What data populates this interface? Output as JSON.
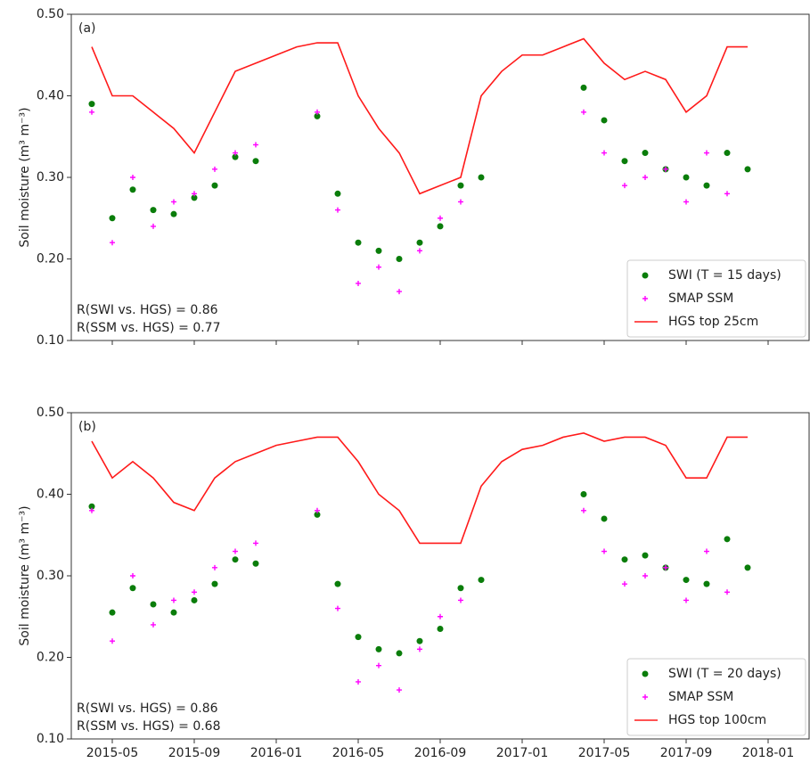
{
  "chart_data": [
    {
      "type": "line",
      "panel_label": "(a)",
      "y_label": "Soil moisture (m³ m⁻³)",
      "annotations": [
        "R(SWI vs. HGS) = 0.86",
        "R(SSM vs. HGS) = 0.77"
      ],
      "legend": "lower right",
      "x": [
        "2015-04",
        "2015-05",
        "2015-06",
        "2015-07",
        "2015-08",
        "2015-09",
        "2015-10",
        "2015-11",
        "2015-12",
        "2016-01",
        "2016-02",
        "2016-03",
        "2016-04",
        "2016-05",
        "2016-06",
        "2016-07",
        "2016-08",
        "2016-09",
        "2016-10",
        "2016-11",
        "2016-12",
        "2017-01",
        "2017-02",
        "2017-03",
        "2017-04",
        "2017-05",
        "2017-06",
        "2017-07",
        "2017-08",
        "2017-09",
        "2017-10",
        "2017-11",
        "2017-12"
      ],
      "xlim": [
        "2015-03",
        "2018-03"
      ],
      "ylim": [
        0.1,
        0.5
      ],
      "yticks": [
        {
          "value": 0.1,
          "label": "0.10"
        },
        {
          "value": 0.2,
          "label": "0.20"
        },
        {
          "value": 0.3,
          "label": "0.30"
        },
        {
          "value": 0.4,
          "label": "0.40"
        },
        {
          "value": 0.5,
          "label": "0.50"
        }
      ],
      "series": [
        {
          "name": "SWI (T = 15 days)",
          "color": "#0a7d0a",
          "mark": "dot",
          "values": [
            0.39,
            0.25,
            0.285,
            0.26,
            0.255,
            0.275,
            0.29,
            0.325,
            0.32,
            null,
            null,
            0.375,
            0.28,
            0.22,
            0.21,
            0.2,
            0.22,
            0.24,
            0.29,
            0.3,
            null,
            null,
            null,
            null,
            0.41,
            0.37,
            0.32,
            0.33,
            0.31,
            0.3,
            0.29,
            0.33,
            0.31
          ]
        },
        {
          "name": "SMAP SSM",
          "color": "#ff00ff",
          "mark": "plus",
          "values": [
            0.38,
            0.22,
            0.3,
            0.24,
            0.27,
            0.28,
            0.31,
            0.33,
            0.34,
            null,
            null,
            0.38,
            0.26,
            0.17,
            0.19,
            0.16,
            0.21,
            0.25,
            0.27,
            null,
            null,
            null,
            null,
            null,
            0.38,
            0.33,
            0.29,
            0.3,
            0.31,
            0.27,
            0.33,
            0.28,
            null
          ]
        },
        {
          "name": "HGS top 25cm",
          "color": "#ff1a1a",
          "mark": "line",
          "values": [
            0.46,
            0.4,
            0.4,
            0.38,
            0.36,
            0.33,
            0.38,
            0.43,
            0.44,
            0.45,
            0.46,
            0.465,
            0.465,
            0.4,
            0.36,
            0.33,
            0.28,
            0.29,
            0.3,
            0.4,
            0.43,
            0.45,
            0.45,
            0.46,
            0.47,
            0.44,
            0.42,
            0.43,
            0.42,
            0.38,
            0.4,
            0.46,
            0.46
          ]
        }
      ]
    },
    {
      "type": "line",
      "panel_label": "(b)",
      "y_label": "Soil moisture (m³ m⁻³)",
      "annotations": [
        "R(SWI vs. HGS) = 0.86",
        "R(SSM vs. HGS) = 0.68"
      ],
      "legend": "lower right",
      "x": [
        "2015-04",
        "2015-05",
        "2015-06",
        "2015-07",
        "2015-08",
        "2015-09",
        "2015-10",
        "2015-11",
        "2015-12",
        "2016-01",
        "2016-02",
        "2016-03",
        "2016-04",
        "2016-05",
        "2016-06",
        "2016-07",
        "2016-08",
        "2016-09",
        "2016-10",
        "2016-11",
        "2016-12",
        "2017-01",
        "2017-02",
        "2017-03",
        "2017-04",
        "2017-05",
        "2017-06",
        "2017-07",
        "2017-08",
        "2017-09",
        "2017-10",
        "2017-11",
        "2017-12"
      ],
      "xlim": [
        "2015-03",
        "2018-03"
      ],
      "xticks": [
        "2015-05",
        "2015-09",
        "2016-01",
        "2016-05",
        "2016-09",
        "2017-01",
        "2017-05",
        "2017-09",
        "2018-01"
      ],
      "ylim": [
        0.1,
        0.5
      ],
      "yticks": [
        {
          "value": 0.1,
          "label": "0.10"
        },
        {
          "value": 0.2,
          "label": "0.20"
        },
        {
          "value": 0.3,
          "label": "0.30"
        },
        {
          "value": 0.4,
          "label": "0.40"
        },
        {
          "value": 0.5,
          "label": "0.50"
        }
      ],
      "series": [
        {
          "name": "SWI (T = 20 days)",
          "color": "#0a7d0a",
          "mark": "dot",
          "values": [
            0.385,
            0.255,
            0.285,
            0.265,
            0.255,
            0.27,
            0.29,
            0.32,
            0.315,
            null,
            null,
            0.375,
            0.29,
            0.225,
            0.21,
            0.205,
            0.22,
            0.235,
            0.285,
            0.295,
            null,
            null,
            null,
            null,
            0.4,
            0.37,
            0.32,
            0.325,
            0.31,
            0.295,
            0.29,
            0.345,
            0.31
          ]
        },
        {
          "name": "SMAP SSM",
          "color": "#ff00ff",
          "mark": "plus",
          "values": [
            0.38,
            0.22,
            0.3,
            0.24,
            0.27,
            0.28,
            0.31,
            0.33,
            0.34,
            null,
            null,
            0.38,
            0.26,
            0.17,
            0.19,
            0.16,
            0.21,
            0.25,
            0.27,
            null,
            null,
            null,
            null,
            null,
            0.38,
            0.33,
            0.29,
            0.3,
            0.31,
            0.27,
            0.33,
            0.28,
            null
          ]
        },
        {
          "name": "HGS top 100cm",
          "color": "#ff1a1a",
          "mark": "line",
          "values": [
            0.465,
            0.42,
            0.44,
            0.42,
            0.39,
            0.38,
            0.42,
            0.44,
            0.45,
            0.46,
            0.465,
            0.47,
            0.47,
            0.44,
            0.4,
            0.38,
            0.34,
            0.34,
            0.34,
            0.41,
            0.44,
            0.455,
            0.46,
            0.47,
            0.475,
            0.465,
            0.47,
            0.47,
            0.46,
            0.42,
            0.42,
            0.47,
            0.47
          ]
        }
      ]
    }
  ]
}
